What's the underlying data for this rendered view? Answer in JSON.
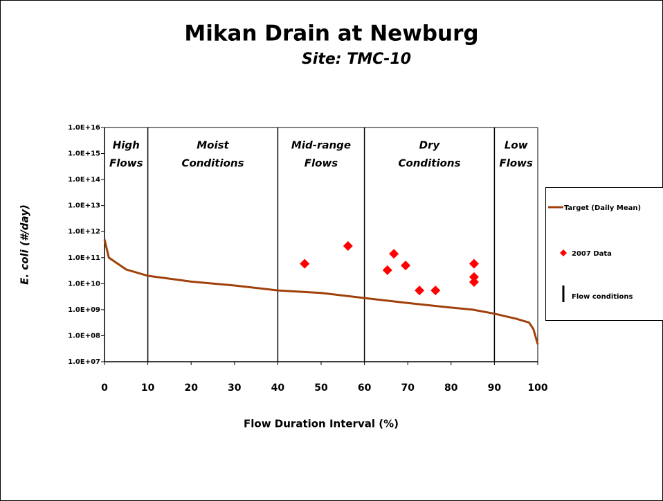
{
  "chart_data": {
    "type": "line",
    "title": "Mikan Drain at Newburg",
    "subtitle": "Site:  TMC-10",
    "xlabel": "Flow Duration Interval (%)",
    "ylabel": "E. coli (#/day)",
    "xlim": [
      0,
      100
    ],
    "xticks": [
      0,
      10,
      20,
      30,
      40,
      50,
      60,
      70,
      80,
      90,
      100
    ],
    "ylim": [
      10000000,
      10000000000000000
    ],
    "yscale": "log",
    "yticks": [
      {
        "value": 10000000,
        "label": "1.0E+07"
      },
      {
        "value": 100000000,
        "label": "1.0E+08"
      },
      {
        "value": 1000000000,
        "label": "1.0E+09"
      },
      {
        "value": 10000000000,
        "label": "1.0E+10"
      },
      {
        "value": 100000000000,
        "label": "1.0E+11"
      },
      {
        "value": 1000000000000,
        "label": "1.0E+12"
      },
      {
        "value": 10000000000000,
        "label": "1.0E+13"
      },
      {
        "value": 100000000000000,
        "label": "1.0E+14"
      },
      {
        "value": 1000000000000000,
        "label": "1.0E+15"
      },
      {
        "value": 10000000000000000,
        "label": "1.0E+16"
      }
    ],
    "series": [
      {
        "name": "Target (Daily Mean)",
        "color": "#a0400a",
        "marker": "none",
        "x": [
          0,
          1,
          5,
          10,
          20,
          30,
          40,
          50,
          60,
          70,
          80,
          85,
          90,
          95,
          98,
          99,
          100
        ],
        "values": [
          500000000000,
          100000000000,
          35000000000,
          20000000000,
          12000000000,
          8500000000,
          5500000000,
          4400000000,
          2800000000,
          1800000000,
          1200000000,
          1000000000,
          700000000,
          450000000,
          320000000,
          180000000,
          47000000
        ]
      },
      {
        "name": "2007 Data",
        "color": "#ff0000",
        "marker": "diamond",
        "x": [
          46.2,
          56.2,
          65.3,
          66.8,
          69.5,
          72.7,
          76.4,
          85.3,
          85.3,
          85.3
        ],
        "values": [
          58000000000,
          280000000000,
          33000000000,
          140000000000,
          50000000000,
          5500000000,
          5500000000,
          58000000000,
          18000000000,
          11500000000
        ]
      }
    ],
    "flow_conditions": {
      "name": "Flow conditions",
      "color": "#000000",
      "x": [
        10,
        40,
        60,
        90
      ]
    },
    "zones": [
      [
        "High",
        "Flows"
      ],
      [
        "Moist",
        "Conditions"
      ],
      [
        "Mid-range",
        "Flows"
      ],
      [
        "Dry",
        "Conditions"
      ],
      [
        "Low",
        "Flows"
      ]
    ],
    "legend": "right"
  }
}
